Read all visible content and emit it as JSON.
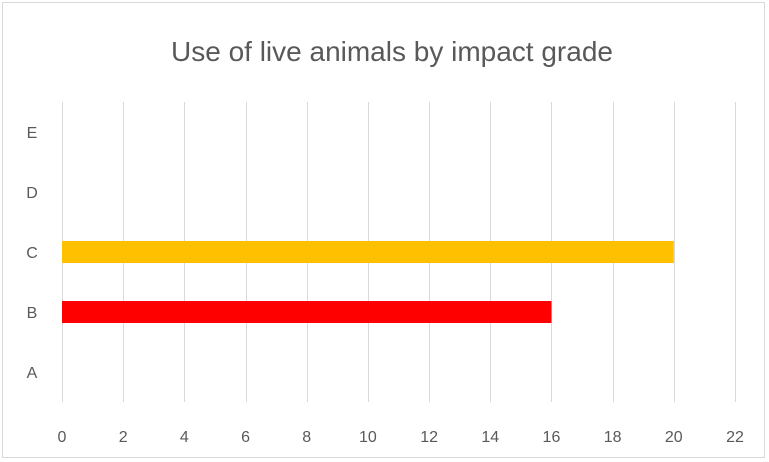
{
  "chart_data": {
    "type": "bar",
    "orientation": "horizontal",
    "title": "Use of live animals by impact grade",
    "xlabel": "",
    "ylabel": "",
    "categories": [
      "A",
      "B",
      "C",
      "D",
      "E"
    ],
    "values": [
      0,
      16,
      20,
      0,
      0
    ],
    "bar_colors": [
      "#ff0000",
      "#ff0000",
      "#ffc000",
      "#ff0000",
      "#ff0000"
    ],
    "xlim": [
      0,
      22
    ],
    "x_ticks": [
      0,
      2,
      4,
      6,
      8,
      10,
      12,
      14,
      16,
      18,
      20,
      22
    ],
    "grid": true,
    "legend": "none"
  }
}
